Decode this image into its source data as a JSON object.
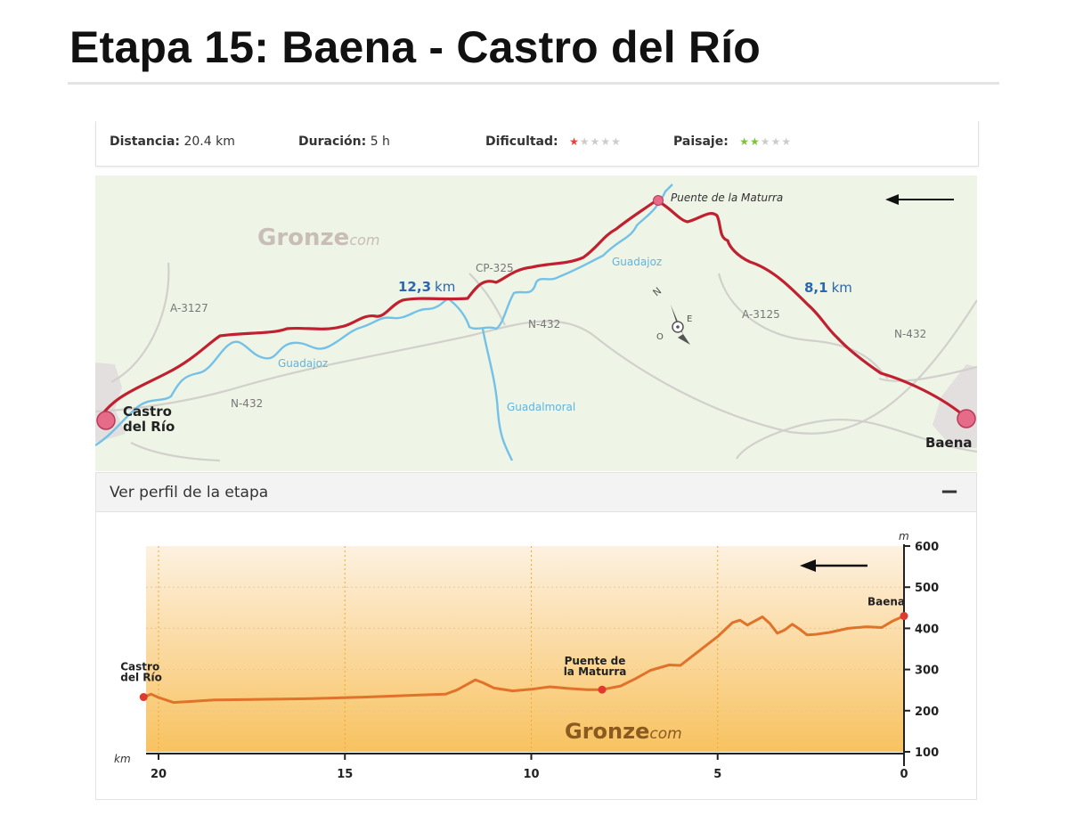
{
  "page": {
    "title": "Etapa 15: Baena - Castro del Río"
  },
  "info": {
    "distance_label": "Distancia:",
    "distance_value": "20.4 km",
    "duration_label": "Duración:",
    "duration_value": "5 h",
    "difficulty_label": "Dificultad:",
    "difficulty_stars": 1,
    "difficulty_max": 5,
    "difficulty_color": "#e0413a",
    "landscape_label": "Paisaje:",
    "landscape_stars": 2,
    "landscape_max": 5,
    "landscape_color": "#7cc23b",
    "star_off_color": "#cccccc"
  },
  "map": {
    "brand_main": "Gronze",
    "brand_suffix": "com",
    "start_town_line1": "Castro",
    "start_town_line2": "del Río",
    "end_town": "Baena",
    "waypoint": "Puente de la Maturra",
    "segment1_value": "12,3",
    "segment1_unit": "km",
    "segment2_value": "8,1",
    "segment2_unit": "km",
    "roads": [
      "A-3127",
      "CP-325",
      "N-432",
      "N-432",
      "A-3125",
      "N-432"
    ],
    "rivers": [
      "Guadajoz",
      "Guadajoz",
      "Guadalmoral"
    ],
    "compass_letters": [
      "N",
      "O",
      "E"
    ],
    "route_color": "#c0202f",
    "river_color": "#74c1e8",
    "land_color": "#eef5e6",
    "road_color": "#d2d0cc"
  },
  "profile": {
    "header_label": "Ver perfil de la etapa",
    "collapse_symbol": "−",
    "brand_main": "Gronze",
    "brand_suffix": "com",
    "y_unit": "m",
    "x_unit": "km",
    "labels": {
      "start_line1": "Castro",
      "start_line2": "del Río",
      "mid_line1": "Puente de",
      "mid_line2": "la Maturra",
      "end": "Baena"
    }
  },
  "chart_data": {
    "type": "area",
    "x_direction": "reversed",
    "xlim": [
      0,
      20.4
    ],
    "ylim": [
      100,
      600
    ],
    "x_ticks": [
      20,
      15,
      10,
      5,
      0
    ],
    "y_ticks": [
      600,
      500,
      400,
      300,
      200,
      100
    ],
    "xlabel": "km",
    "ylabel": "m",
    "series": [
      {
        "x": [
          20.4,
          20.2,
          20.0,
          19.6,
          19.2,
          18.5,
          17.5,
          16.0,
          14.5,
          13.0,
          12.3,
          12.0,
          11.7,
          11.5,
          11.3,
          11.0,
          10.5,
          10.0,
          9.5,
          9.0,
          8.5,
          8.1,
          7.6,
          7.2,
          6.8,
          6.3,
          6.0,
          5.5,
          5.0,
          4.6,
          4.4,
          4.2,
          4.0,
          3.8,
          3.6,
          3.4,
          3.2,
          3.0,
          2.8,
          2.6,
          2.4,
          2.0,
          1.5,
          1.0,
          0.6,
          0.3,
          0.0
        ],
        "y": [
          233,
          240,
          232,
          220,
          222,
          226,
          227,
          229,
          233,
          238,
          240,
          250,
          265,
          275,
          268,
          255,
          248,
          252,
          258,
          254,
          251,
          251,
          260,
          278,
          298,
          311,
          310,
          345,
          380,
          414,
          420,
          408,
          418,
          428,
          412,
          388,
          396,
          410,
          398,
          384,
          385,
          390,
          400,
          404,
          402,
          418,
          430
        ]
      }
    ],
    "annotations": [
      {
        "label": "Castro del Río",
        "x": 20.4,
        "y": 233
      },
      {
        "label": "Puente de la Maturra",
        "x": 8.1,
        "y": 251
      },
      {
        "label": "Baena",
        "x": 0.0,
        "y": 430
      }
    ],
    "line_color": "#e0722a"
  }
}
